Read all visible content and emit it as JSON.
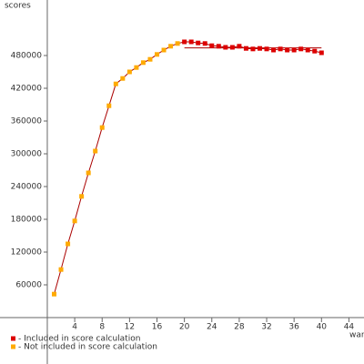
{
  "chart_data": {
    "type": "line",
    "y_label": "scores",
    "x_label": "war",
    "xlim": [
      -6.9,
      46.2
    ],
    "ylim": [
      -85000,
      581667
    ],
    "xticks": [
      4,
      8,
      12,
      16,
      20,
      24,
      28,
      32,
      36,
      40,
      44
    ],
    "yticks": [
      60000,
      120000,
      180000,
      240000,
      300000,
      360000,
      420000,
      480000
    ],
    "line_color": "#aa0000",
    "series": [
      {
        "name": "- Not included in score calculation",
        "color": "#ffaa00",
        "x": [
          1,
          2,
          3,
          4,
          5,
          6,
          7,
          8,
          9,
          10,
          11,
          12,
          13,
          14,
          15,
          16,
          17,
          18,
          19
        ],
        "values": [
          43000,
          88000,
          135000,
          177000,
          222000,
          265000,
          305000,
          348000,
          388000,
          428000,
          438000,
          450000,
          458000,
          467000,
          473000,
          482000,
          490000,
          497000,
          502000
        ]
      },
      {
        "name": "- Included in score calculation",
        "color": "#dd0000",
        "x": [
          20,
          21,
          22,
          23,
          24,
          25,
          26,
          27,
          28,
          29,
          30,
          31,
          32,
          33,
          34,
          35,
          36,
          37,
          38,
          39,
          40
        ],
        "values": [
          505000,
          505000,
          503000,
          502000,
          498000,
          497000,
          495000,
          495000,
          497000,
          493000,
          492000,
          493000,
          492000,
          490000,
          492000,
          490000,
          490000,
          492000,
          490000,
          488000,
          485000
        ]
      }
    ],
    "hline": {
      "y": 494000,
      "x": [
        20,
        40
      ]
    }
  }
}
